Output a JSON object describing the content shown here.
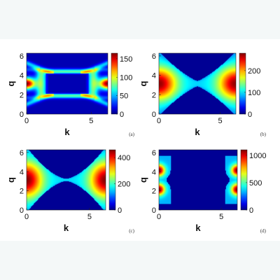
{
  "chart_data": [
    {
      "type": "heatmap",
      "panel_label": "(a)",
      "xlabel": "k",
      "ylabel": "q",
      "xlim": [
        0,
        6.2832
      ],
      "ylim": [
        0,
        6.2832
      ],
      "xticks": [
        "0",
        "5"
      ],
      "yticks": [
        "0",
        "2",
        "4",
        "6"
      ],
      "colorbar": {
        "range": [
          0,
          165
        ],
        "ticks": [
          "0",
          "50",
          "100",
          "150"
        ]
      },
      "pattern": "inner dark-blue rectangle surrounded by a cyan/yellow ring; red hot spots at left and right edges near q≈3.1; curved arms toward corners"
    },
    {
      "type": "heatmap",
      "panel_label": "(b)",
      "xlabel": "k",
      "ylabel": "q",
      "xlim": [
        0,
        6.2832
      ],
      "ylim": [
        0,
        6.2832
      ],
      "xticks": [
        "0",
        "5"
      ],
      "yticks": [
        "0",
        "2",
        "4",
        "6"
      ],
      "colorbar": {
        "range": [
          0,
          280
        ],
        "ticks": [
          "0",
          "100",
          "200"
        ]
      },
      "pattern": "hourglass: large red lobes at left and right edges centered at q≈3.1; cyan waist at k≈π; dark-blue wedges top and bottom center"
    },
    {
      "type": "heatmap",
      "panel_label": "(c)",
      "xlabel": "k",
      "ylabel": "q",
      "xlim": [
        0,
        6.2832
      ],
      "ylim": [
        0,
        6.2832
      ],
      "xticks": [
        "0",
        "5"
      ],
      "yticks": [
        "0",
        "2",
        "4",
        "6"
      ],
      "colorbar": {
        "range": [
          0,
          460
        ],
        "ticks": [
          "0",
          "200",
          "400"
        ]
      },
      "pattern": "thinner hourglass: red lobes at left and right edges; thin cyan waist at k≈π; large dark-blue wedges top and bottom"
    },
    {
      "type": "heatmap",
      "panel_label": "(d)",
      "xlabel": "k",
      "ylabel": "q",
      "xlim": [
        0,
        6.2832
      ],
      "ylim": [
        0,
        6.2832
      ],
      "xticks": [
        "0",
        "5"
      ],
      "yticks": [
        "0",
        "2",
        "4",
        "6"
      ],
      "colorbar": {
        "range": [
          0,
          1100
        ],
        "ticks": [
          "0",
          "500",
          "1000"
        ]
      },
      "pattern": "dark-blue background; narrow crescent regions at k≈0 and k≈2π with red double lobes at q≈2 and q≈4"
    }
  ]
}
